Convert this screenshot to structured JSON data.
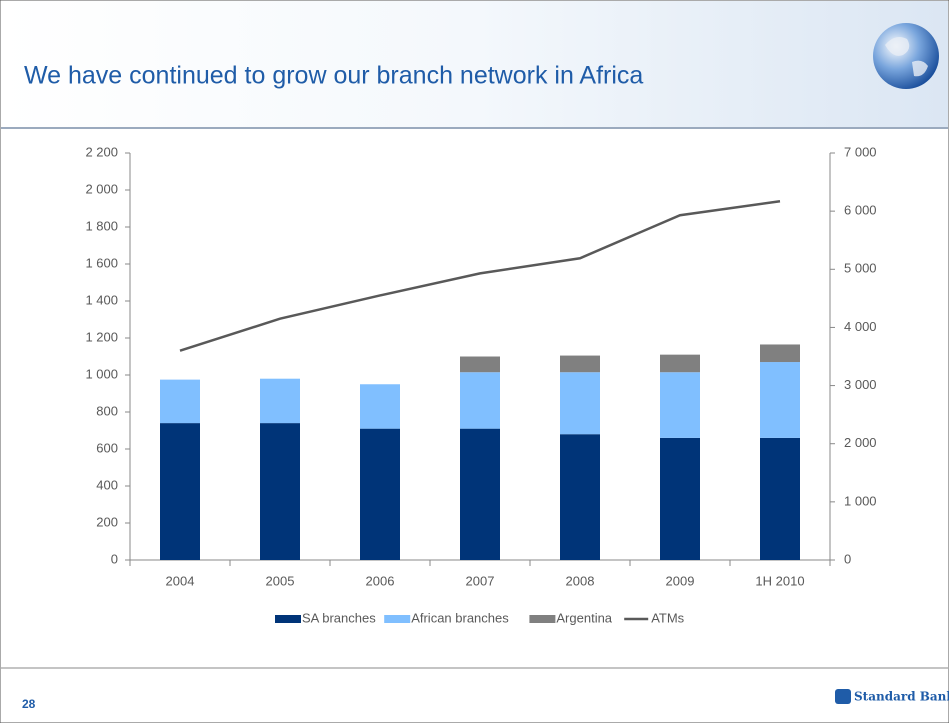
{
  "header": {
    "title": "We have continued to grow our branch network in Africa"
  },
  "chart_data": {
    "type": "bar",
    "categories": [
      "2004",
      "2005",
      "2006",
      "2007",
      "2008",
      "2009",
      "1H 2010"
    ],
    "stacked": true,
    "series": [
      {
        "name": "SA branches",
        "color": "#003478",
        "values": [
          740,
          740,
          710,
          710,
          680,
          660,
          660
        ]
      },
      {
        "name": "African branches",
        "color": "#80bfff",
        "values": [
          235,
          240,
          240,
          305,
          335,
          355,
          410
        ]
      },
      {
        "name": "Argentina",
        "color": "#808080",
        "values": [
          null,
          null,
          null,
          85,
          90,
          95,
          95
        ]
      },
      {
        "name": "ATMs",
        "type": "line",
        "axis": "y2",
        "color": "#595959",
        "values": [
          3600,
          4150,
          4550,
          4930,
          5190,
          5930,
          6170
        ]
      }
    ],
    "ylim": [
      0,
      2200
    ],
    "yticks": [
      0,
      200,
      400,
      600,
      800,
      {
        "value": 1000,
        "label": "1 000"
      },
      {
        "value": 1200,
        "label": "1 200"
      },
      {
        "value": 1400,
        "label": "1 400"
      },
      {
        "value": 1600,
        "label": "1 600"
      },
      {
        "value": 1800,
        "label": "1 800"
      },
      {
        "value": 2000,
        "label": "2 000"
      },
      {
        "value": 2200,
        "label": "2 200"
      }
    ],
    "y2lim": [
      0,
      7000
    ],
    "y2ticks": [
      0,
      {
        "value": 1000,
        "label": "1 000"
      },
      {
        "value": 2000,
        "label": "2 000"
      },
      {
        "value": 3000,
        "label": "3 000"
      },
      {
        "value": 4000,
        "label": "4 000"
      },
      {
        "value": 5000,
        "label": "5 000"
      },
      {
        "value": 6000,
        "label": "6 000"
      },
      {
        "value": 7000,
        "label": "7 000"
      }
    ],
    "legend": "bottom"
  },
  "footer": {
    "page": "28",
    "brand": "Standard Bank"
  }
}
